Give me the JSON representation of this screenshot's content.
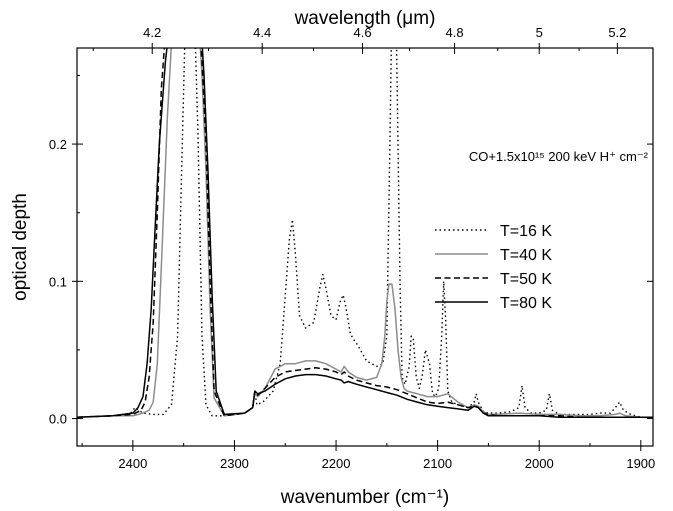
{
  "chart_data": {
    "type": "line",
    "xlabel": "wavenumber (cm⁻¹)",
    "x2label": "wavelength (μm)",
    "ylabel": "optical depth",
    "annotation": "CO+1.5x10¹⁵ 200 keV H⁺ cm⁻²",
    "xlim": [
      2455,
      1888
    ],
    "ylim": [
      -0.02,
      0.27
    ],
    "xticks": [
      2400,
      2300,
      2200,
      2100,
      2000,
      1900
    ],
    "xtick_labels": [
      "2400",
      "2300",
      "2200",
      "2100",
      "2000",
      "1900"
    ],
    "x2ticks": [
      4.2,
      4.4,
      4.6,
      4.8,
      5.0,
      5.2
    ],
    "x2tick_labels": [
      "4.2",
      "4.4",
      "4.6",
      "4.8",
      "5",
      "5.2"
    ],
    "yticks": [
      0.0,
      0.1,
      0.2
    ],
    "ytick_labels": [
      "0.0",
      "0.1",
      "0.2"
    ],
    "legend_position": "right",
    "series": [
      {
        "name": "T=16 K",
        "style": "dotted",
        "color": "#000000",
        "x": [
          2455,
          2420,
          2402,
          2398,
          2390,
          2380,
          2370,
          2362,
          2356,
          2352,
          2348,
          2344,
          2340,
          2336,
          2332,
          2328,
          2322,
          2310,
          2290,
          2282,
          2280,
          2278,
          2272,
          2262,
          2255,
          2250,
          2246,
          2243,
          2240,
          2236,
          2230,
          2222,
          2216,
          2213,
          2210,
          2205,
          2200,
          2196,
          2193,
          2190,
          2186,
          2183,
          2180,
          2176,
          2170,
          2160,
          2154,
          2150,
          2147,
          2145,
          2143,
          2141,
          2139,
          2137,
          2135,
          2132,
          2128,
          2126,
          2124,
          2121,
          2118,
          2115,
          2112,
          2108,
          2105,
          2102,
          2099,
          2096,
          2094,
          2092,
          2090,
          2086,
          2080,
          2070,
          2064,
          2062,
          2060,
          2055,
          2050,
          2040,
          2028,
          2020,
          2017,
          2014,
          2008,
          2000,
          1993,
          1990,
          1987,
          1980,
          1970,
          1960,
          1950,
          1940,
          1930,
          1925,
          1921,
          1917,
          1910,
          1900,
          1888
        ],
        "y": [
          0.001,
          0.002,
          0.004,
          0.008,
          0.004,
          0.003,
          0.003,
          0.01,
          0.06,
          0.18,
          0.3,
          0.33,
          0.31,
          0.21,
          0.06,
          0.01,
          0.002,
          0.002,
          0.004,
          0.008,
          0.02,
          0.01,
          0.012,
          0.02,
          0.04,
          0.09,
          0.13,
          0.145,
          0.12,
          0.075,
          0.066,
          0.07,
          0.095,
          0.105,
          0.095,
          0.075,
          0.072,
          0.085,
          0.09,
          0.08,
          0.062,
          0.058,
          0.055,
          0.05,
          0.042,
          0.038,
          0.04,
          0.06,
          0.2,
          0.3,
          0.35,
          0.3,
          0.2,
          0.1,
          0.03,
          0.025,
          0.038,
          0.06,
          0.058,
          0.03,
          0.022,
          0.032,
          0.05,
          0.04,
          0.018,
          0.016,
          0.022,
          0.06,
          0.1,
          0.07,
          0.02,
          0.012,
          0.01,
          0.008,
          0.012,
          0.018,
          0.012,
          0.005,
          0.004,
          0.004,
          0.005,
          0.008,
          0.024,
          0.008,
          0.004,
          0.004,
          0.006,
          0.018,
          0.006,
          0.003,
          0.003,
          0.003,
          0.003,
          0.004,
          0.004,
          0.008,
          0.012,
          0.006,
          0.003,
          0.001,
          0.001
        ]
      },
      {
        "name": "T=40 K",
        "style": "solid",
        "color": "#8c8c8c",
        "x": [
          2455,
          2420,
          2400,
          2390,
          2384,
          2380,
          2376,
          2372,
          2366,
          2360,
          2354,
          2348,
          2342,
          2336,
          2332,
          2328,
          2324,
          2320,
          2310,
          2290,
          2282,
          2280,
          2277,
          2270,
          2260,
          2250,
          2240,
          2230,
          2220,
          2210,
          2200,
          2195,
          2192,
          2188,
          2180,
          2170,
          2160,
          2155,
          2152,
          2150,
          2148,
          2145,
          2142,
          2139,
          2136,
          2133,
          2130,
          2125,
          2120,
          2110,
          2100,
          2090,
          2085,
          2080,
          2070,
          2064,
          2060,
          2055,
          2050,
          2040,
          2020,
          2000,
          1990,
          1980,
          1960,
          1940,
          1925,
          1921,
          1915,
          1900,
          1888
        ],
        "y": [
          0.001,
          0.002,
          0.002,
          0.004,
          0.006,
          0.012,
          0.04,
          0.11,
          0.22,
          0.3,
          0.32,
          0.32,
          0.32,
          0.3,
          0.25,
          0.18,
          0.08,
          0.015,
          0.002,
          0.004,
          0.008,
          0.018,
          0.016,
          0.022,
          0.036,
          0.04,
          0.04,
          0.042,
          0.042,
          0.04,
          0.036,
          0.034,
          0.038,
          0.034,
          0.03,
          0.028,
          0.03,
          0.04,
          0.06,
          0.085,
          0.098,
          0.098,
          0.08,
          0.05,
          0.03,
          0.022,
          0.02,
          0.019,
          0.018,
          0.016,
          0.016,
          0.018,
          0.015,
          0.012,
          0.008,
          0.01,
          0.009,
          0.005,
          0.003,
          0.003,
          0.004,
          0.003,
          0.003,
          0.003,
          0.002,
          0.002,
          0.003,
          0.004,
          0.002,
          0.001,
          0.001
        ]
      },
      {
        "name": "T=50 K",
        "style": "dashed",
        "color": "#000000",
        "x": [
          2455,
          2420,
          2400,
          2392,
          2388,
          2384,
          2380,
          2376,
          2372,
          2366,
          2360,
          2354,
          2348,
          2342,
          2336,
          2332,
          2328,
          2324,
          2320,
          2310,
          2290,
          2282,
          2280,
          2277,
          2270,
          2260,
          2250,
          2240,
          2230,
          2220,
          2210,
          2200,
          2195,
          2192,
          2188,
          2180,
          2170,
          2160,
          2150,
          2140,
          2130,
          2120,
          2110,
          2100,
          2090,
          2080,
          2070,
          2064,
          2060,
          2055,
          2050,
          2040,
          2020,
          2000,
          1980,
          1960,
          1940,
          1920,
          1900,
          1888
        ],
        "y": [
          0.001,
          0.002,
          0.003,
          0.006,
          0.012,
          0.03,
          0.07,
          0.15,
          0.24,
          0.3,
          0.32,
          0.32,
          0.32,
          0.32,
          0.3,
          0.26,
          0.2,
          0.1,
          0.02,
          0.002,
          0.004,
          0.008,
          0.02,
          0.017,
          0.022,
          0.03,
          0.034,
          0.035,
          0.036,
          0.037,
          0.036,
          0.034,
          0.032,
          0.034,
          0.031,
          0.028,
          0.026,
          0.024,
          0.023,
          0.021,
          0.018,
          0.015,
          0.012,
          0.011,
          0.012,
          0.01,
          0.008,
          0.009,
          0.008,
          0.004,
          0.003,
          0.002,
          0.002,
          0.002,
          0.002,
          0.001,
          0.001,
          0.001,
          0.001,
          0.001
        ]
      },
      {
        "name": "T=80 K",
        "style": "solid",
        "color": "#000000",
        "x": [
          2455,
          2420,
          2400,
          2395,
          2390,
          2386,
          2382,
          2378,
          2374,
          2368,
          2362,
          2356,
          2350,
          2344,
          2338,
          2334,
          2330,
          2326,
          2322,
          2318,
          2310,
          2290,
          2282,
          2280,
          2277,
          2270,
          2260,
          2250,
          2240,
          2230,
          2220,
          2210,
          2200,
          2195,
          2192,
          2188,
          2180,
          2170,
          2160,
          2150,
          2140,
          2130,
          2120,
          2110,
          2100,
          2090,
          2080,
          2070,
          2064,
          2060,
          2055,
          2050,
          2040,
          2020,
          2000,
          1980,
          1960,
          1940,
          1920,
          1900,
          1888
        ],
        "y": [
          0.001,
          0.002,
          0.004,
          0.008,
          0.016,
          0.04,
          0.08,
          0.14,
          0.2,
          0.26,
          0.3,
          0.32,
          0.32,
          0.32,
          0.32,
          0.3,
          0.25,
          0.18,
          0.09,
          0.02,
          0.003,
          0.004,
          0.008,
          0.02,
          0.018,
          0.02,
          0.025,
          0.029,
          0.031,
          0.032,
          0.032,
          0.031,
          0.029,
          0.028,
          0.026,
          0.027,
          0.025,
          0.023,
          0.021,
          0.019,
          0.017,
          0.014,
          0.012,
          0.01,
          0.009,
          0.008,
          0.007,
          0.006,
          0.009,
          0.008,
          0.004,
          0.002,
          0.002,
          0.002,
          0.002,
          0.001,
          0.001,
          0.001,
          0.001,
          0.001,
          0.001
        ]
      }
    ]
  }
}
